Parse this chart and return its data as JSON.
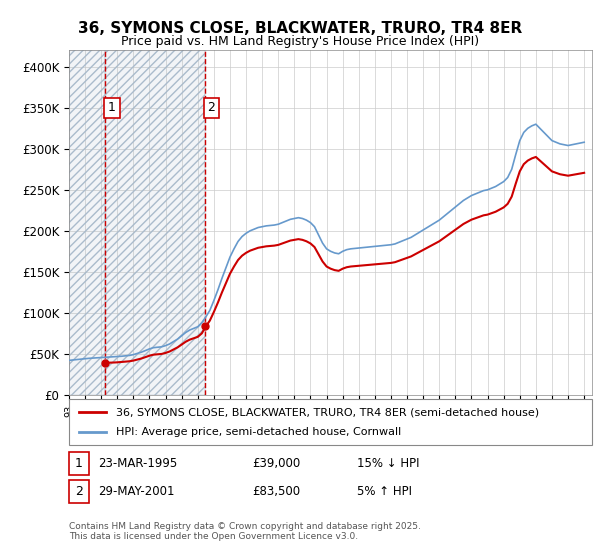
{
  "title_line1": "36, SYMONS CLOSE, BLACKWATER, TRURO, TR4 8ER",
  "title_line2": "Price paid vs. HM Land Registry's House Price Index (HPI)",
  "xlabel": "",
  "ylabel": "",
  "ylim": [
    0,
    420000
  ],
  "yticks": [
    0,
    50000,
    100000,
    150000,
    200000,
    250000,
    300000,
    350000,
    400000
  ],
  "ytick_labels": [
    "£0",
    "£50K",
    "£100K",
    "£150K",
    "£200K",
    "£250K",
    "£300K",
    "£350K",
    "£400K"
  ],
  "legend_entries": [
    "36, SYMONS CLOSE, BLACKWATER, TRURO, TR4 8ER (semi-detached house)",
    "HPI: Average price, semi-detached house, Cornwall"
  ],
  "legend_colors": [
    "#cc0000",
    "#6699cc"
  ],
  "sale1_x": 1995.25,
  "sale1_price": 39000,
  "sale1_label": "1",
  "sale1_date_str": "23-MAR-1995",
  "sale1_price_str": "£39,000",
  "sale1_hpi_str": "15% ↓ HPI",
  "sale2_x": 2001.42,
  "sale2_price": 83500,
  "sale2_label": "2",
  "sale2_date_str": "29-MAY-2001",
  "sale2_price_str": "£83,500",
  "sale2_hpi_str": "5% ↑ HPI",
  "footer": "Contains HM Land Registry data © Crown copyright and database right 2025.\nThis data is licensed under the Open Government Licence v3.0.",
  "grid_color": "#cccccc",
  "background_color": "#ffffff",
  "plot_bg_color": "#ffffff",
  "line_color_hpi": "#6699cc",
  "line_color_price": "#cc0000",
  "vline_color": "#cc0000",
  "hatch_color": "#aabbcc"
}
